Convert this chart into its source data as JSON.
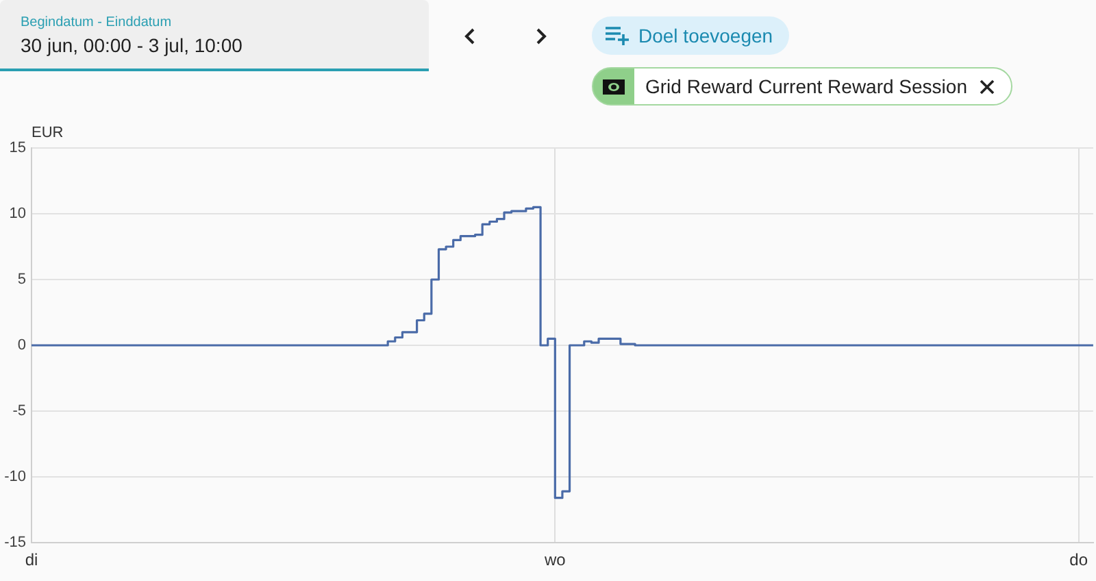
{
  "chart_data": {
    "type": "step",
    "ylabel": "EUR",
    "categories": [
      "di",
      null,
      null,
      null,
      null,
      null,
      null,
      null,
      null,
      null,
      null,
      null,
      null,
      null,
      null,
      null,
      null,
      null,
      null,
      null,
      null,
      null,
      null,
      null,
      null,
      null,
      null,
      null,
      null,
      null,
      null,
      null,
      null,
      null,
      null,
      null,
      null,
      null,
      null,
      null,
      null,
      null,
      null,
      null,
      null,
      null,
      null,
      null,
      null,
      null,
      null,
      null,
      null,
      null,
      null,
      null,
      null,
      null,
      null,
      null,
      null,
      null,
      null,
      null,
      null,
      null,
      null,
      null,
      null,
      null,
      null,
      null,
      "wo",
      null,
      null,
      null,
      null,
      null,
      null,
      null,
      null,
      null,
      null,
      null,
      null,
      null,
      null,
      null,
      null,
      null,
      null,
      null,
      null,
      null,
      null,
      null,
      null,
      null,
      null,
      null,
      null,
      null,
      null,
      null,
      null,
      null,
      null,
      null,
      null,
      null,
      null,
      null,
      null,
      null,
      null,
      null,
      null,
      null,
      null,
      null,
      null,
      null,
      null,
      null,
      null,
      null,
      null,
      null,
      null,
      null,
      null,
      null,
      null,
      null,
      null,
      null,
      null,
      null,
      null,
      null,
      null,
      null,
      null,
      null,
      "do",
      null,
      null
    ],
    "values": [
      0,
      0,
      0,
      0,
      0,
      0,
      0,
      0,
      0,
      0,
      0,
      0,
      0,
      0,
      0,
      0,
      0,
      0,
      0,
      0,
      0,
      0,
      0,
      0,
      0,
      0,
      0,
      0,
      0,
      0,
      0,
      0,
      0,
      0,
      0,
      0,
      0,
      0,
      0,
      0,
      0,
      0,
      0,
      0,
      0,
      0,
      0,
      0,
      0,
      0.3,
      0.6,
      1.0,
      1.0,
      1.9,
      2.4,
      5.0,
      7.3,
      7.5,
      8.0,
      8.3,
      8.3,
      8.4,
      9.2,
      9.4,
      9.6,
      10.1,
      10.2,
      10.2,
      10.4,
      10.5,
      0,
      0.5,
      -11.6,
      -11.1,
      0,
      0,
      0.3,
      0.2,
      0.5,
      0.5,
      0.5,
      0.1,
      0.1,
      0,
      0,
      0,
      0,
      0,
      0,
      0,
      0,
      0,
      0,
      0,
      0,
      0,
      0,
      0,
      0,
      0,
      0,
      0,
      0,
      0,
      0,
      0,
      0,
      0,
      0,
      0,
      0,
      0,
      0,
      0,
      0,
      0,
      0,
      0,
      0,
      0,
      0,
      0,
      0,
      0,
      0,
      0,
      0,
      0,
      0,
      0,
      0,
      0,
      0,
      0,
      0,
      0,
      0,
      0,
      0,
      0,
      0,
      0,
      0,
      0,
      0,
      0,
      0
    ],
    "color": "#4a6ba8",
    "ylim": [
      -15,
      15
    ],
    "yticks": [
      -15,
      -10,
      -5,
      0,
      5,
      10,
      15
    ],
    "grid": true,
    "annotations": [
      "Begindatum - Einddatum",
      "30 jun, 00:00 - 3 jul, 10:00",
      "Doel toevoegen",
      "Grid Reward Current Reward Session"
    ]
  }
}
